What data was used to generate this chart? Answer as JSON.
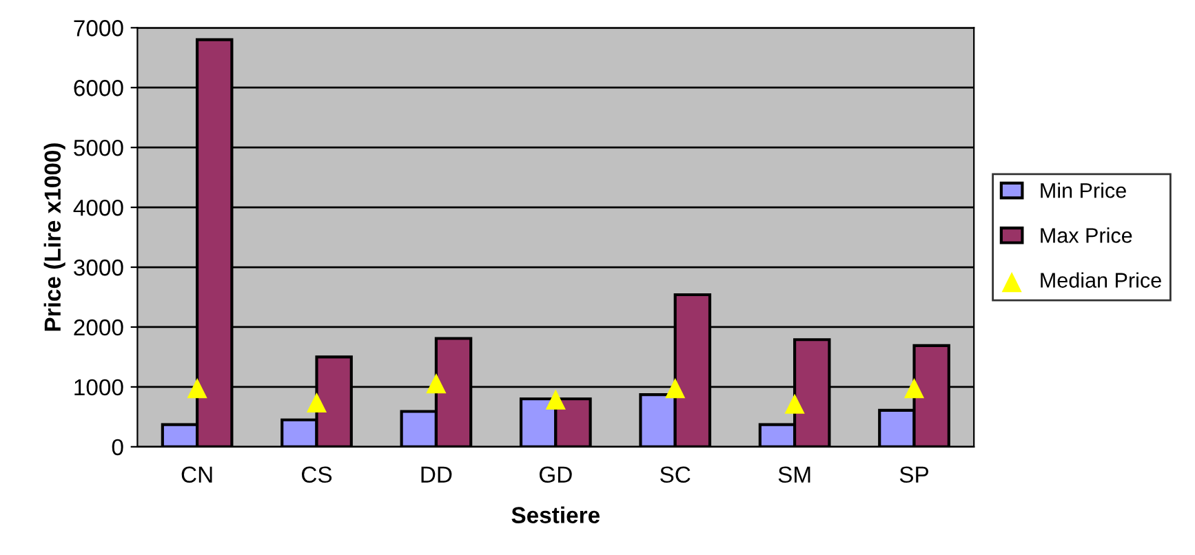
{
  "chart_data": {
    "type": "bar",
    "xlabel": "Sestiere",
    "ylabel": "Price (Lire x1000)",
    "categories": [
      "CN",
      "CS",
      "DD",
      "GD",
      "SC",
      "SM",
      "SP"
    ],
    "series": [
      {
        "name": "Min Price",
        "color": "#9999ff",
        "values": [
          370,
          450,
          590,
          800,
          870,
          370,
          610
        ]
      },
      {
        "name": "Max Price",
        "color": "#993366",
        "values": [
          6800,
          1500,
          1810,
          800,
          2540,
          1790,
          1690
        ]
      },
      {
        "name": "Median Price",
        "type": "scatter",
        "marker": "triangle",
        "color": "#ffff00",
        "values": [
          980,
          740,
          1060,
          790,
          980,
          720,
          980
        ]
      }
    ],
    "ylim": [
      0,
      7000
    ],
    "yticks": [
      0,
      1000,
      2000,
      3000,
      4000,
      5000,
      6000,
      7000
    ],
    "grid": "y",
    "legend": "right"
  }
}
